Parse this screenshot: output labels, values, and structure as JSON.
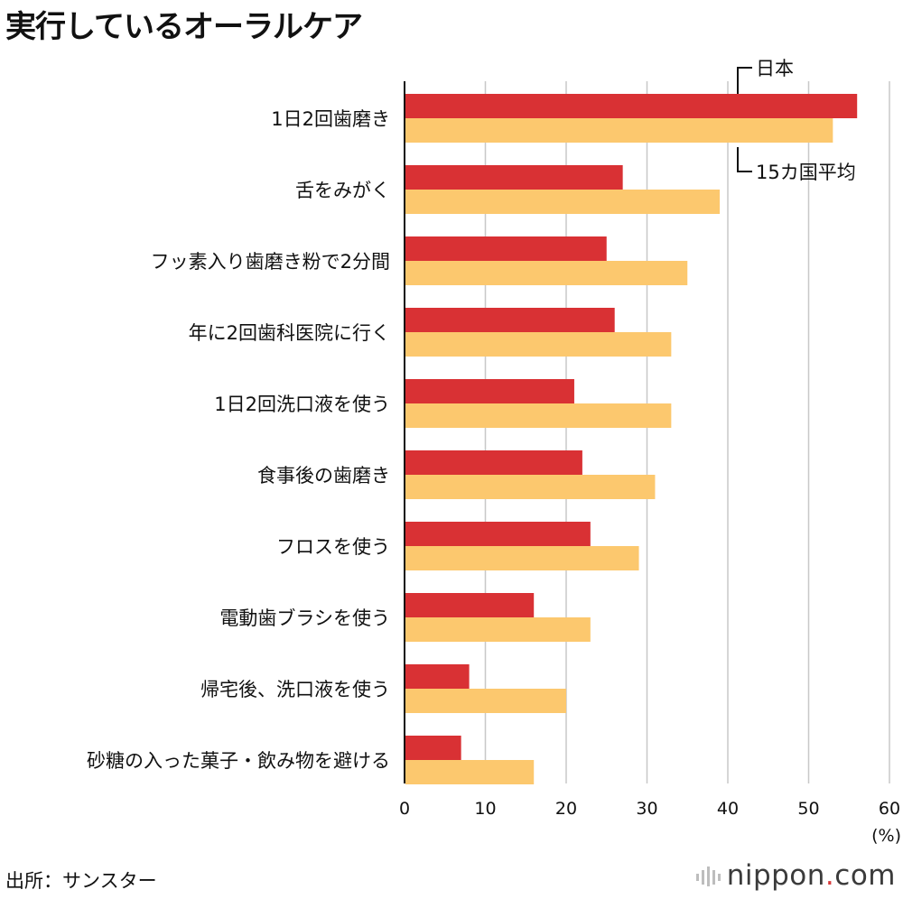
{
  "title": "実行しているオーラルケア",
  "source": "出所：サンスター",
  "brand": {
    "name": "nippon",
    "dot": ".",
    "tld": "com"
  },
  "colors": {
    "japan": "#d93134",
    "average": "#fcc86e",
    "grid": "#c8c8c8",
    "axis": "#111111"
  },
  "chart_data": {
    "type": "bar",
    "orientation": "horizontal",
    "title": "実行しているオーラルケア",
    "unit_label": "(%)",
    "xlim": [
      0,
      60
    ],
    "xticks": [
      "0",
      "10",
      "20",
      "30",
      "40",
      "50",
      "60"
    ],
    "grid": true,
    "categories": [
      "1日2回歯磨き",
      "舌をみがく",
      "フッ素入り歯磨き粉で2分間",
      "年に2回歯科医院に行く",
      "1日2回洗口液を使う",
      "食事後の歯磨き",
      "フロスを使う",
      "電動歯ブラシを使う",
      "帰宅後、洗口液を使う",
      "砂糖の入った菓子・飲み物を避ける"
    ],
    "series": [
      {
        "name": "日本",
        "color": "#d93134",
        "values": [
          56,
          27,
          25,
          26,
          21,
          22,
          23,
          16,
          8,
          7
        ]
      },
      {
        "name": "15カ国平均",
        "color": "#fcc86e",
        "values": [
          53,
          39,
          35,
          33,
          33,
          31,
          29,
          23,
          20,
          16
        ]
      }
    ]
  }
}
